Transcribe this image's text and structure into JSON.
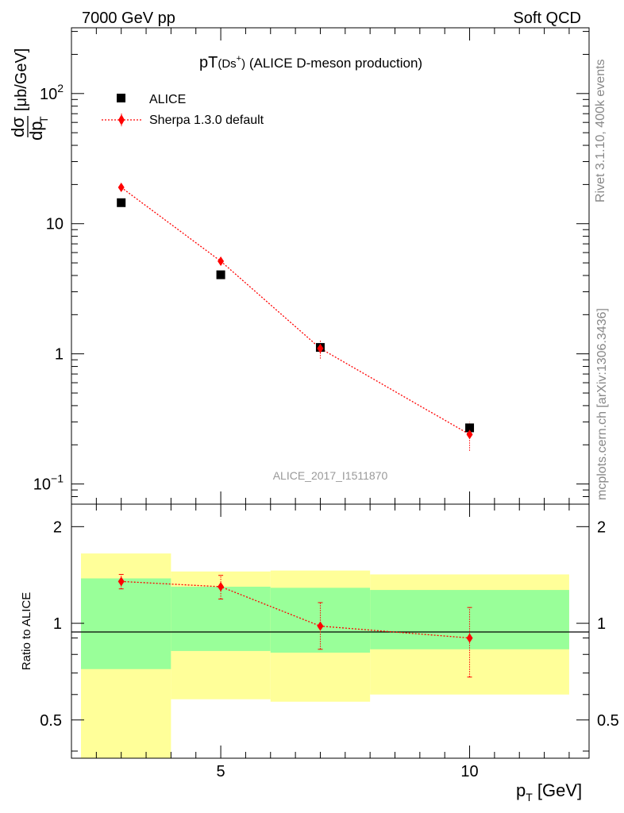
{
  "header": {
    "left": "7000 GeV pp",
    "right": "Soft QCD"
  },
  "side_labels": {
    "rivet": "Rivet 3.1.10,  400k events",
    "mcplots": "mcplots.cern.ch [arXiv:1306.3436]"
  },
  "chart_data": [
    {
      "type": "scatter",
      "title_main": "pT",
      "title_sub": "(Ds",
      "title_sup": "+",
      "title_close": ")",
      "title_rest": " (ALICE D-meson production)",
      "analysis_tag": "ALICE_2017_I1511870",
      "ylabel": "dσ/dp_T [μb/GeV]",
      "yscale": "log",
      "xlim": [
        2,
        12.4
      ],
      "ylim": [
        0.07,
        320
      ],
      "ytick_labels": [
        {
          "value": 0.1,
          "label": "10",
          "sup": "−1"
        },
        {
          "value": 1,
          "label": "1",
          "sup": ""
        },
        {
          "value": 10,
          "label": "10",
          "sup": ""
        },
        {
          "value": 100,
          "label": "10",
          "sup": "2"
        }
      ],
      "legend": {
        "placement": "top-left",
        "entries": [
          {
            "label": "ALICE",
            "marker": "square",
            "color": "#000000"
          },
          {
            "label": "Sherpa 1.3.0 default",
            "marker": "diamond",
            "color": "#ff0000"
          }
        ]
      },
      "series": [
        {
          "name": "ALICE",
          "color": "#000000",
          "marker": "square",
          "x": [
            3,
            5,
            7,
            10
          ],
          "y": [
            14.5,
            4.05,
            1.12,
            0.27
          ]
        },
        {
          "name": "Sherpa 1.3.0 default",
          "color": "#ff0000",
          "marker": "diamond",
          "line": "dotted",
          "x": [
            3,
            5,
            7,
            10
          ],
          "y": [
            19.0,
            5.15,
            1.1,
            0.24
          ],
          "err_low": [
            17.8,
            4.8,
            0.92,
            0.18
          ],
          "err_high": [
            20.2,
            5.5,
            1.28,
            0.3
          ]
        }
      ]
    },
    {
      "type": "scatter",
      "ylabel": "Ratio to ALICE",
      "xlabel": "p_T [GeV]",
      "yscale": "log",
      "xlim": [
        2,
        12.4
      ],
      "ylim": [
        0.38,
        2.35
      ],
      "ytick_labels": [
        {
          "value": 0.5,
          "label": "0.5"
        },
        {
          "value": 1,
          "label": "1"
        },
        {
          "value": 2,
          "label": "2"
        }
      ],
      "xtick_labels": [
        {
          "value": 5,
          "label": "5"
        },
        {
          "value": 10,
          "label": "10"
        }
      ],
      "bands": [
        {
          "x0": 2,
          "x1": 4,
          "yellow": [
            0.3,
            1.65
          ],
          "green": [
            0.72,
            1.38
          ]
        },
        {
          "x0": 4,
          "x1": 6,
          "yellow": [
            0.58,
            1.45
          ],
          "green": [
            0.82,
            1.3
          ]
        },
        {
          "x0": 6,
          "x1": 8,
          "yellow": [
            0.57,
            1.46
          ],
          "green": [
            0.81,
            1.29
          ]
        },
        {
          "x0": 8,
          "x1": 12,
          "yellow": [
            0.6,
            1.42
          ],
          "green": [
            0.83,
            1.27
          ]
        }
      ],
      "series": [
        {
          "name": "Sherpa 1.3.0 default",
          "color": "#ff0000",
          "marker": "diamond",
          "line": "dotted",
          "x": [
            3,
            5,
            7,
            10
          ],
          "y": [
            1.35,
            1.3,
            0.98,
            0.9
          ],
          "err_low": [
            1.28,
            1.19,
            0.83,
            0.68
          ],
          "err_high": [
            1.42,
            1.41,
            1.16,
            1.12
          ]
        }
      ]
    }
  ]
}
